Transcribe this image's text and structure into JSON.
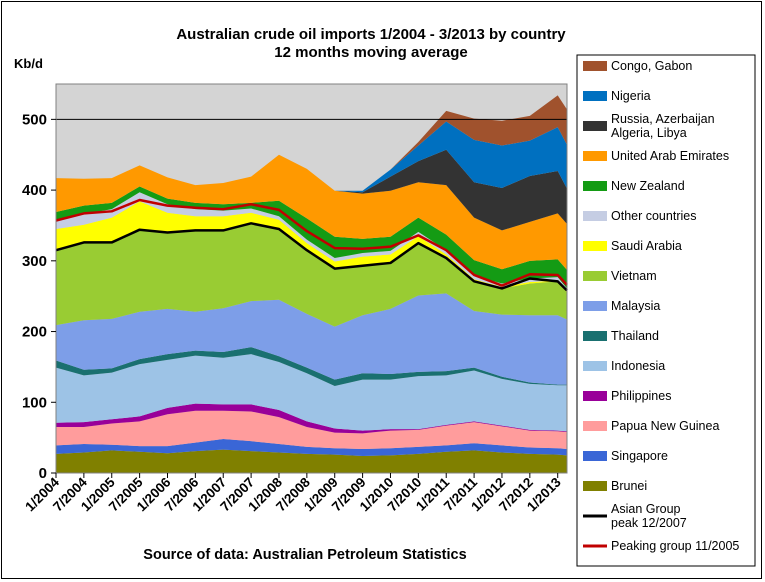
{
  "title": {
    "line1": "Australian crude oil imports 1/2004 - 3/2013 by country",
    "line2": "12 months moving average"
  },
  "source": "Source of data: Australian Petroleum Statistics",
  "chart_data": {
    "type": "area",
    "stacked": true,
    "ylabel": "Kb/d",
    "ylim": [
      0,
      550
    ],
    "yticks": [
      0,
      100,
      200,
      300,
      400,
      500
    ],
    "x_start": "1/2004",
    "x_end": "3/2013",
    "xtick_labels": [
      "1/2004",
      "7/2004",
      "1/2005",
      "7/2005",
      "1/2006",
      "7/2006",
      "1/2007",
      "7/2007",
      "1/2008",
      "7/2008",
      "1/2009",
      "7/2009",
      "1/2010",
      "7/2010",
      "1/2011",
      "7/2011",
      "1/2012",
      "7/2012",
      "1/2013"
    ],
    "x": [
      "1/2004",
      "7/2004",
      "1/2005",
      "7/2005",
      "1/2006",
      "7/2006",
      "1/2007",
      "7/2007",
      "1/2008",
      "7/2008",
      "1/2009",
      "7/2009",
      "1/2010",
      "7/2010",
      "1/2011",
      "7/2011",
      "1/2012",
      "7/2012",
      "1/2013",
      "3/2013"
    ],
    "reference_line": 500,
    "legend_position": "right",
    "series": [
      {
        "name": "Brunei",
        "color": "#808000",
        "values": [
          27,
          29,
          32,
          30,
          28,
          31,
          33,
          31,
          29,
          27,
          26,
          24,
          25,
          27,
          30,
          32,
          29,
          27,
          26,
          25
        ]
      },
      {
        "name": "Singapore",
        "color": "#3a66d6",
        "values": [
          12,
          12,
          8,
          8,
          10,
          12,
          15,
          14,
          12,
          10,
          9,
          10,
          10,
          10,
          9,
          10,
          10,
          9,
          9,
          9
        ]
      },
      {
        "name": "Papua New Guinea",
        "color": "#ff9c9c",
        "values": [
          26,
          24,
          30,
          35,
          45,
          45,
          40,
          42,
          38,
          28,
          22,
          22,
          25,
          24,
          28,
          30,
          27,
          24,
          24,
          24
        ]
      },
      {
        "name": "Philippines",
        "color": "#990099",
        "values": [
          6,
          7,
          6,
          7,
          9,
          10,
          9,
          10,
          10,
          8,
          6,
          4,
          2,
          1,
          1,
          1,
          1,
          1,
          1,
          1
        ]
      },
      {
        "name": "Indonesia",
        "color": "#9dc3e6",
        "values": [
          78,
          66,
          66,
          74,
          68,
          68,
          66,
          71,
          68,
          68,
          60,
          72,
          70,
          75,
          70,
          72,
          66,
          65,
          64,
          65
        ]
      },
      {
        "name": "Thailand",
        "color": "#1a7070",
        "values": [
          10,
          8,
          6,
          7,
          8,
          7,
          8,
          10,
          8,
          8,
          9,
          9,
          8,
          6,
          6,
          4,
          3,
          2,
          1,
          1
        ]
      },
      {
        "name": "Malaysia",
        "color": "#7d9ee8",
        "values": [
          50,
          70,
          70,
          67,
          64,
          55,
          62,
          65,
          80,
          76,
          75,
          82,
          92,
          108,
          110,
          80,
          88,
          95,
          98,
          92
        ]
      },
      {
        "name": "Vietnam",
        "color": "#99cc33",
        "values": [
          106,
          110,
          108,
          116,
          108,
          115,
          110,
          110,
          100,
          90,
          82,
          70,
          65,
          74,
          50,
          42,
          37,
          45,
          48,
          38
        ]
      },
      {
        "name": "Saudi Arabia",
        "color": "#ffff00",
        "values": [
          30,
          25,
          35,
          40,
          28,
          20,
          20,
          15,
          13,
          10,
          10,
          13,
          12,
          10,
          5,
          3,
          2,
          2,
          1,
          1
        ]
      },
      {
        "name": "Other countries",
        "color": "#c5cde3",
        "values": [
          12,
          15,
          12,
          13,
          12,
          10,
          8,
          6,
          5,
          5,
          5,
          5,
          5,
          6,
          6,
          5,
          5,
          5,
          5,
          5
        ]
      },
      {
        "name": "New Zealand",
        "color": "#149b14",
        "values": [
          12,
          12,
          9,
          8,
          8,
          9,
          9,
          8,
          22,
          30,
          30,
          20,
          20,
          20,
          22,
          22,
          20,
          25,
          25,
          26
        ]
      },
      {
        "name": "United Arab Emirates",
        "color": "#ff9900",
        "values": [
          48,
          38,
          35,
          30,
          30,
          25,
          30,
          37,
          65,
          70,
          65,
          64,
          65,
          50,
          70,
          60,
          55,
          55,
          65,
          65
        ]
      },
      {
        "name": "Russia, Azerbaijan\nAlgeria, Libya",
        "color": "#333333",
        "values": [
          0,
          0,
          0,
          0,
          0,
          0,
          0,
          0,
          0,
          0,
          0,
          2,
          20,
          30,
          50,
          50,
          60,
          65,
          60,
          50
        ]
      },
      {
        "name": "Nigeria",
        "color": "#0070c0",
        "values": [
          0,
          0,
          0,
          0,
          0,
          0,
          0,
          0,
          0,
          0,
          0,
          2,
          10,
          22,
          40,
          60,
          60,
          50,
          62,
          62
        ]
      },
      {
        "name": "Congo, Gabon",
        "color": "#a0522d",
        "values": [
          0,
          0,
          0,
          0,
          0,
          0,
          0,
          0,
          0,
          0,
          0,
          0,
          0,
          5,
          15,
          30,
          35,
          35,
          45,
          50
        ]
      }
    ],
    "lines": [
      {
        "name": "Asian Group\npeak 12/2007",
        "color": "#000000",
        "values": [
          315,
          326,
          326,
          344,
          340,
          343,
          343,
          353,
          345,
          315,
          289,
          293,
          297,
          325,
          304,
          271,
          261,
          275,
          271,
          258
        ]
      },
      {
        "name": "Peaking group 11/2005",
        "color": "#c00000",
        "values": [
          357,
          367,
          370,
          386,
          378,
          375,
          373,
          380,
          372,
          342,
          318,
          317,
          320,
          336,
          315,
          280,
          265,
          281,
          280,
          266
        ]
      }
    ]
  }
}
